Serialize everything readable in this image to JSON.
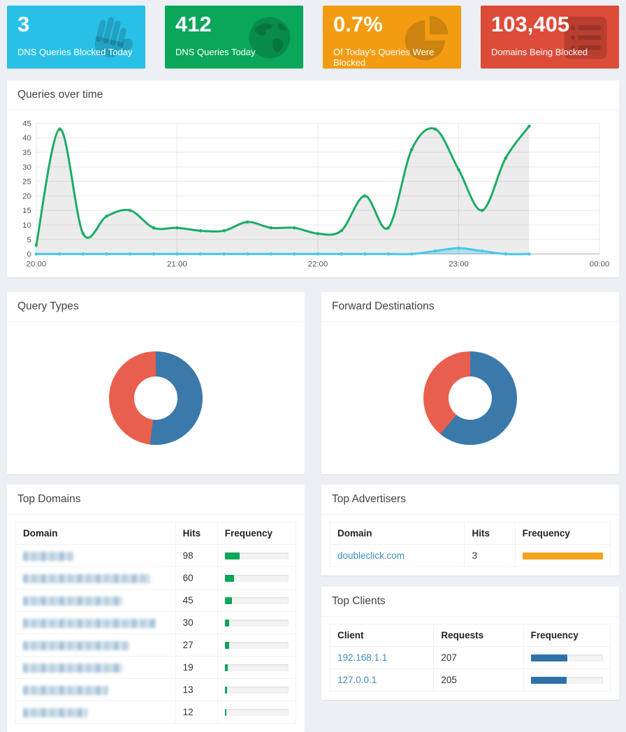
{
  "cards": [
    {
      "value": "3",
      "label": "DNS Queries Blocked Today",
      "color": "#29c0e7",
      "icon": "hand-paper-icon"
    },
    {
      "value": "412",
      "label": "DNS Queries Today",
      "color": "#0aa65a",
      "icon": "globe-icon"
    },
    {
      "value": "0.7%",
      "label": "Of Today's Queries Were Blocked",
      "color": "#f39c12",
      "icon": "pie-chart-icon"
    },
    {
      "value": "103,405",
      "label": "Domains Being Blocked",
      "color": "#dd4b39",
      "icon": "list-alt-icon"
    }
  ],
  "chart_data": [
    {
      "id": "queries_over_time",
      "type": "line",
      "title": "Queries over time",
      "x": [
        "20:00",
        "20:10",
        "20:20",
        "20:30",
        "20:40",
        "20:50",
        "21:00",
        "21:10",
        "21:20",
        "21:30",
        "21:40",
        "21:50",
        "22:00",
        "22:10",
        "22:20",
        "22:30",
        "22:40",
        "22:50",
        "23:00",
        "23:10",
        "23:20",
        "23:30"
      ],
      "series": [
        {
          "name": "total_queries",
          "color": "#1bac64",
          "fill": "rgba(0,0,0,0.075)",
          "values": [
            3,
            43,
            7,
            13,
            15,
            9,
            9,
            8,
            8,
            11,
            9,
            9,
            7,
            8,
            20,
            9,
            36,
            43,
            29,
            15,
            33,
            44
          ]
        },
        {
          "name": "blocked_queries",
          "color": "#45c7ee",
          "fill": "rgba(69,199,238,0.35)",
          "values": [
            0,
            0,
            0,
            0,
            0,
            0,
            0,
            0,
            0,
            0,
            0,
            0,
            0,
            0,
            0,
            0,
            0,
            1,
            2,
            1,
            0,
            0
          ]
        }
      ],
      "xticks": [
        "20:00",
        "21:00",
        "22:00",
        "23:00",
        "00:00"
      ],
      "ylim": [
        0,
        45
      ],
      "ytick_step": 5,
      "grid": true,
      "legend": "none"
    },
    {
      "id": "query_types",
      "type": "donut",
      "title": "Query Types",
      "slices": [
        {
          "label": "slice-blue",
          "pct": 52,
          "color": "#3c79ab"
        },
        {
          "label": "slice-red",
          "pct": 48,
          "color": "#e8604d"
        }
      ]
    },
    {
      "id": "forward_destinations",
      "type": "donut",
      "title": "Forward Destinations",
      "slices": [
        {
          "label": "slice-blue",
          "pct": 61,
          "color": "#3c79ab"
        },
        {
          "label": "slice-red",
          "pct": 39,
          "color": "#e8604d"
        }
      ]
    }
  ],
  "top_domains": {
    "title": "Top Domains",
    "headers": [
      "Domain",
      "Hits",
      "Frequency"
    ],
    "bar_color": "#0aa65a",
    "rows": [
      {
        "redacted": true,
        "blur_width": 72,
        "hits": "98",
        "pct": 23.8
      },
      {
        "redacted": true,
        "blur_width": 182,
        "hits": "60",
        "pct": 14.6
      },
      {
        "redacted": true,
        "blur_width": 142,
        "hits": "45",
        "pct": 10.9
      },
      {
        "redacted": true,
        "blur_width": 190,
        "hits": "30",
        "pct": 7.3
      },
      {
        "redacted": true,
        "blur_width": 152,
        "hits": "27",
        "pct": 6.6
      },
      {
        "redacted": true,
        "blur_width": 142,
        "hits": "19",
        "pct": 4.6
      },
      {
        "redacted": true,
        "blur_width": 122,
        "hits": "13",
        "pct": 3.2
      },
      {
        "redacted": true,
        "blur_width": 92,
        "hits": "12",
        "pct": 2.9
      }
    ]
  },
  "top_advertisers": {
    "title": "Top Advertisers",
    "headers": [
      "Domain",
      "Hits",
      "Frequency"
    ],
    "bar_color": "#f5a31f",
    "rows": [
      {
        "domain": "doubleclick.com",
        "hits": "3",
        "pct": 100
      }
    ]
  },
  "top_clients": {
    "title": "Top Clients",
    "headers": [
      "Client",
      "Requests",
      "Frequency"
    ],
    "bar_color": "#2f72ab",
    "rows": [
      {
        "client": "192.168.1.1",
        "requests": "207",
        "pct": 50.2
      },
      {
        "client": "127.0.0.1",
        "requests": "205",
        "pct": 49.8
      }
    ]
  }
}
